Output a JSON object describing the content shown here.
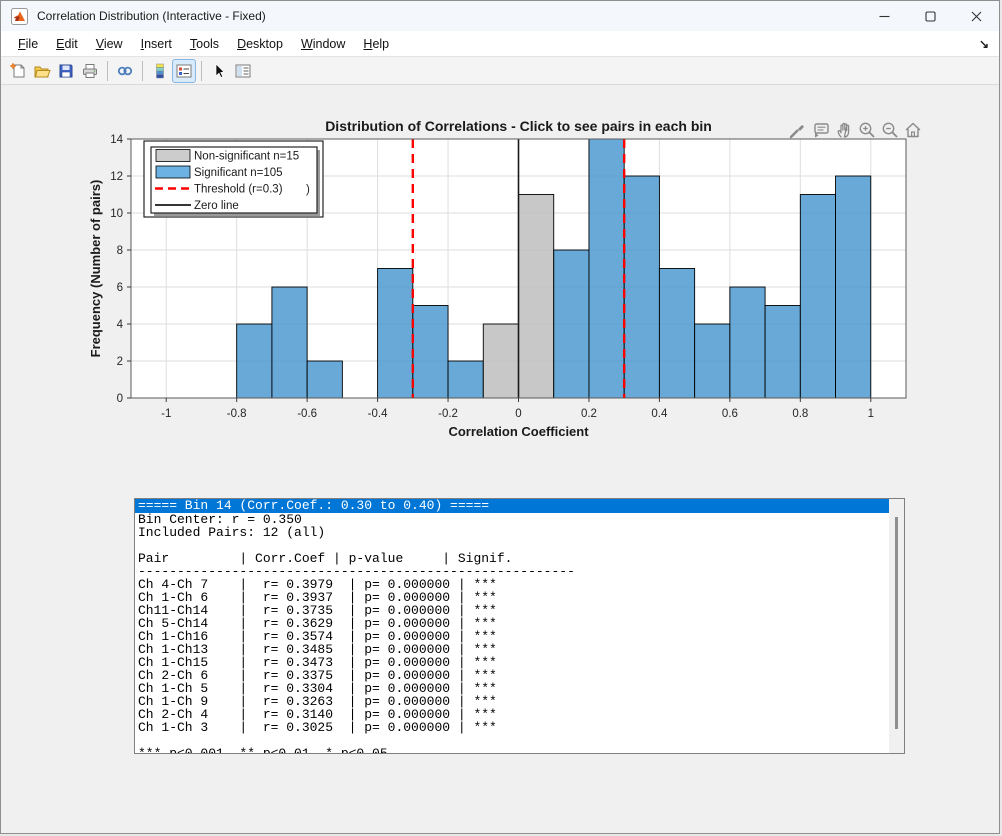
{
  "window": {
    "title": "Correlation Distribution (Interactive - Fixed)",
    "controls": [
      "minimize-icon",
      "maximize-icon",
      "close-icon"
    ],
    "app_icon": "matlab-logo-icon"
  },
  "menu": {
    "items": [
      "File",
      "Edit",
      "View",
      "Insert",
      "Tools",
      "Desktop",
      "Window",
      "Help"
    ],
    "dock_icon": "dock-figure-icon"
  },
  "toolbar": {
    "icons": [
      "new-figure-icon",
      "open-file-icon",
      "save-icon",
      "print-icon",
      "link-plot-icon",
      "colorbar-icon",
      "insert-legend-icon",
      "pointer-icon",
      "property-inspector-icon"
    ],
    "active_button": "insert-legend"
  },
  "axes_toolbar": {
    "icons": [
      "brush-icon",
      "datatips-icon",
      "pan-icon",
      "zoom-in-icon",
      "zoom-out-icon",
      "restore-view-icon"
    ]
  },
  "chart_data": {
    "type": "bar",
    "title": "Distribution of Correlations - Click to see pairs in each bin",
    "xlabel": "Correlation Coefficient",
    "ylabel": "Frequency (Number of pairs)",
    "xlim": [
      -1.1,
      1.1
    ],
    "ylim": [
      0,
      14
    ],
    "xticks": [
      -1,
      -0.8,
      -0.6,
      -0.4,
      -0.2,
      0,
      0.2,
      0.4,
      0.6,
      0.8,
      1
    ],
    "xtick_labels": [
      "-1",
      "-0.8",
      "-0.6",
      "-0.4",
      "-0.2",
      "0",
      "0.2",
      "0.4",
      "0.6",
      "0.8",
      "1"
    ],
    "yticks": [
      0,
      2,
      4,
      6,
      8,
      10,
      12,
      14
    ],
    "grid": true,
    "bin_width": 0.1,
    "bars": [
      {
        "x": -1.0,
        "h": 0,
        "group": "significant"
      },
      {
        "x": -0.9,
        "h": 0,
        "group": "significant"
      },
      {
        "x": -0.8,
        "h": 4,
        "group": "significant"
      },
      {
        "x": -0.7,
        "h": 6,
        "group": "significant"
      },
      {
        "x": -0.6,
        "h": 2,
        "group": "significant"
      },
      {
        "x": -0.5,
        "h": 0,
        "group": "significant"
      },
      {
        "x": -0.4,
        "h": 7,
        "group": "significant"
      },
      {
        "x": -0.3,
        "h": 5,
        "group": "significant"
      },
      {
        "x": -0.2,
        "h": 2,
        "group": "significant"
      },
      {
        "x": -0.1,
        "h": 4,
        "group": "non_significant"
      },
      {
        "x": 0.0,
        "h": 11,
        "group": "non_significant"
      },
      {
        "x": 0.1,
        "h": 8,
        "group": "significant"
      },
      {
        "x": 0.2,
        "h": 14,
        "group": "significant"
      },
      {
        "x": 0.3,
        "h": 12,
        "group": "significant"
      },
      {
        "x": 0.4,
        "h": 7,
        "group": "significant"
      },
      {
        "x": 0.5,
        "h": 4,
        "group": "significant"
      },
      {
        "x": 0.6,
        "h": 6,
        "group": "significant"
      },
      {
        "x": 0.7,
        "h": 5,
        "group": "significant"
      },
      {
        "x": 0.8,
        "h": 11,
        "group": "significant"
      },
      {
        "x": 0.9,
        "h": 12,
        "group": "significant"
      }
    ],
    "colors": {
      "significant": "#4d9ad0",
      "non_significant": "#bebebe",
      "bar_edge": "#000000",
      "grid": "#dedede",
      "threshold": "#ff0000",
      "zero_line": "#1a1a1a"
    },
    "threshold_lines": [
      -0.3,
      0.3
    ],
    "zero_line_x": 0,
    "legend": {
      "position": "top-left",
      "artifact_text": ")",
      "items": [
        {
          "label": "Non-significant n=15",
          "swatch": "box",
          "color": "#cccccc"
        },
        {
          "label": "Significant n=105",
          "swatch": "box",
          "color": "#6cb2e2"
        },
        {
          "label": "Threshold (r=0.3)",
          "swatch": "dashed-line",
          "color": "#ff0000"
        },
        {
          "label": "Zero line",
          "swatch": "solid-line",
          "color": "#1a1a1a"
        }
      ]
    }
  },
  "panel": {
    "header_line": "===== Bin 14 (Corr.Coef.: 0.30 to 0.40) =====",
    "lines": [
      "Bin Center: r = 0.350",
      "Included Pairs: 12 (all)",
      "",
      "Pair         | Corr.Coef | p-value     | Signif.",
      "--------------------------------------------------------",
      "Ch 4-Ch 7    |  r= 0.3979  | p= 0.000000 | ***",
      "Ch 1-Ch 6    |  r= 0.3937  | p= 0.000000 | ***",
      "Ch11-Ch14    |  r= 0.3735  | p= 0.000000 | ***",
      "Ch 5-Ch14    |  r= 0.3629  | p= 0.000000 | ***",
      "Ch 1-Ch16    |  r= 0.3574  | p= 0.000000 | ***",
      "Ch 1-Ch13    |  r= 0.3485  | p= 0.000000 | ***",
      "Ch 1-Ch15    |  r= 0.3473  | p= 0.000000 | ***",
      "Ch 2-Ch 6    |  r= 0.3375  | p= 0.000000 | ***",
      "Ch 1-Ch 5    |  r= 0.3304  | p= 0.000000 | ***",
      "Ch 1-Ch 9    |  r= 0.3263  | p= 0.000000 | ***",
      "Ch 2-Ch 4    |  r= 0.3140  | p= 0.000000 | ***",
      "Ch 1-Ch 3    |  r= 0.3025  | p= 0.000000 | ***",
      "",
      "*** p<0.001, ** p<0.01, * p<0.05"
    ]
  }
}
